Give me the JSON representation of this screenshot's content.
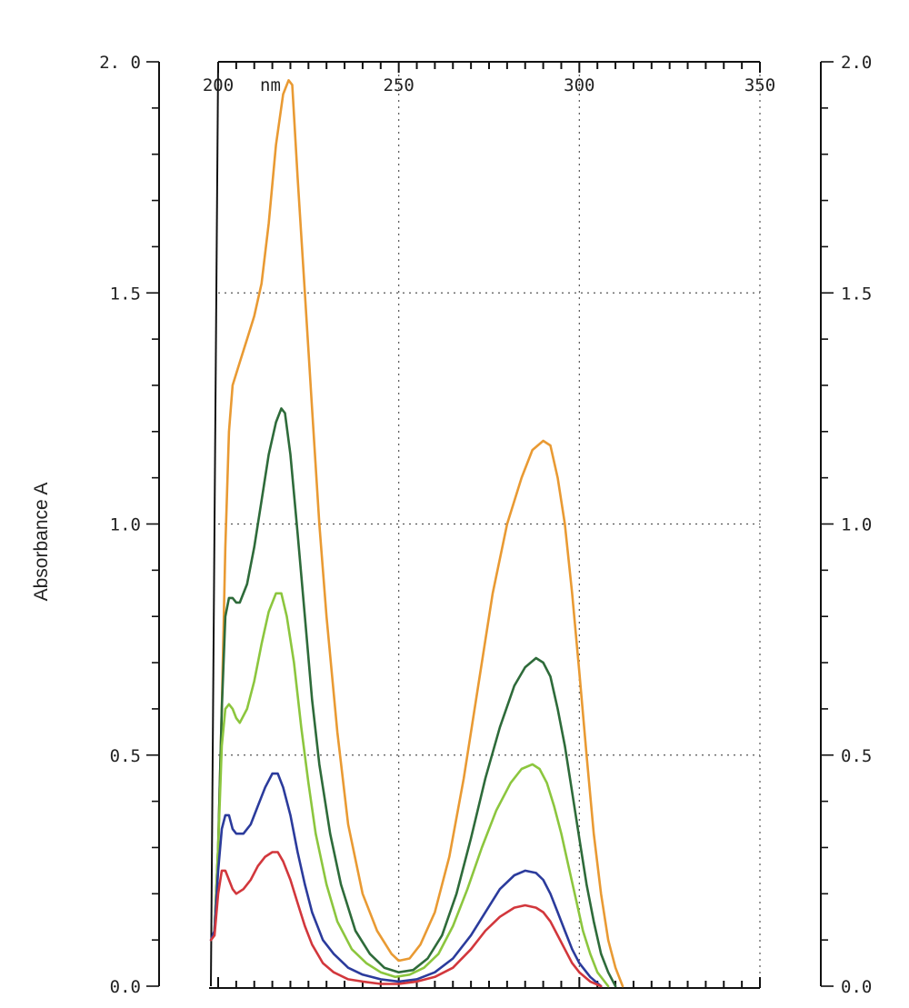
{
  "chart_data": {
    "type": "line",
    "xlabel": "nm",
    "ylabel": "Absorbance A",
    "xlim": [
      200,
      350
    ],
    "ylim": [
      0,
      2
    ],
    "grid": true,
    "x_tick_labels": [
      "200",
      "250",
      "300",
      "350"
    ],
    "x_ticks": [
      200,
      250,
      300,
      350
    ],
    "y_tick_labels_left": [
      "0.0",
      "0.5",
      "1.0",
      "1.5",
      "2. 0"
    ],
    "y_tick_labels_right": [
      "0.0",
      "0.5",
      "1.0",
      "1.5",
      "2.0"
    ],
    "y_ticks": [
      0,
      0.5,
      1.0,
      1.5,
      2.0
    ],
    "series": [
      {
        "color": "#e99a33",
        "points": [
          [
            199,
            0.12
          ],
          [
            200,
            0.3
          ],
          [
            201,
            0.6
          ],
          [
            202,
            0.95
          ],
          [
            203,
            1.2
          ],
          [
            204,
            1.3
          ],
          [
            206,
            1.35
          ],
          [
            208,
            1.4
          ],
          [
            210,
            1.45
          ],
          [
            212,
            1.52
          ],
          [
            214,
            1.65
          ],
          [
            216,
            1.82
          ],
          [
            218,
            1.93
          ],
          [
            219.5,
            1.96
          ],
          [
            220.5,
            1.95
          ],
          [
            222,
            1.75
          ],
          [
            224,
            1.5
          ],
          [
            226,
            1.25
          ],
          [
            228,
            1.0
          ],
          [
            230,
            0.8
          ],
          [
            233,
            0.55
          ],
          [
            236,
            0.35
          ],
          [
            240,
            0.2
          ],
          [
            244,
            0.12
          ],
          [
            248,
            0.07
          ],
          [
            250,
            0.055
          ],
          [
            253,
            0.06
          ],
          [
            256,
            0.09
          ],
          [
            260,
            0.16
          ],
          [
            264,
            0.28
          ],
          [
            268,
            0.45
          ],
          [
            272,
            0.65
          ],
          [
            276,
            0.85
          ],
          [
            280,
            1.0
          ],
          [
            284,
            1.1
          ],
          [
            287,
            1.16
          ],
          [
            290,
            1.18
          ],
          [
            292,
            1.17
          ],
          [
            294,
            1.1
          ],
          [
            296,
            1.0
          ],
          [
            298,
            0.85
          ],
          [
            300,
            0.68
          ],
          [
            302,
            0.5
          ],
          [
            304,
            0.33
          ],
          [
            306,
            0.2
          ],
          [
            308,
            0.1
          ],
          [
            310,
            0.04
          ],
          [
            312,
            0.0
          ]
        ]
      },
      {
        "color": "#2e6b3a",
        "points": [
          [
            199,
            0.12
          ],
          [
            200,
            0.3
          ],
          [
            201,
            0.6
          ],
          [
            202,
            0.8
          ],
          [
            203,
            0.84
          ],
          [
            204,
            0.84
          ],
          [
            205,
            0.83
          ],
          [
            206,
            0.83
          ],
          [
            208,
            0.87
          ],
          [
            210,
            0.95
          ],
          [
            212,
            1.05
          ],
          [
            214,
            1.15
          ],
          [
            216,
            1.22
          ],
          [
            217.5,
            1.25
          ],
          [
            218.5,
            1.24
          ],
          [
            220,
            1.15
          ],
          [
            222,
            0.98
          ],
          [
            224,
            0.8
          ],
          [
            226,
            0.62
          ],
          [
            228,
            0.48
          ],
          [
            231,
            0.33
          ],
          [
            234,
            0.22
          ],
          [
            238,
            0.12
          ],
          [
            242,
            0.07
          ],
          [
            246,
            0.04
          ],
          [
            250,
            0.03
          ],
          [
            254,
            0.035
          ],
          [
            258,
            0.06
          ],
          [
            262,
            0.11
          ],
          [
            266,
            0.2
          ],
          [
            270,
            0.32
          ],
          [
            274,
            0.45
          ],
          [
            278,
            0.56
          ],
          [
            282,
            0.65
          ],
          [
            285,
            0.69
          ],
          [
            288,
            0.71
          ],
          [
            290,
            0.7
          ],
          [
            292,
            0.67
          ],
          [
            294,
            0.6
          ],
          [
            296,
            0.52
          ],
          [
            298,
            0.42
          ],
          [
            300,
            0.32
          ],
          [
            302,
            0.22
          ],
          [
            304,
            0.14
          ],
          [
            306,
            0.07
          ],
          [
            308,
            0.03
          ],
          [
            310,
            0.0
          ]
        ]
      },
      {
        "color": "#8cc63e",
        "points": [
          [
            199,
            0.12
          ],
          [
            200,
            0.3
          ],
          [
            201,
            0.52
          ],
          [
            202,
            0.6
          ],
          [
            203,
            0.61
          ],
          [
            204,
            0.6
          ],
          [
            205,
            0.58
          ],
          [
            206,
            0.57
          ],
          [
            208,
            0.6
          ],
          [
            210,
            0.66
          ],
          [
            212,
            0.74
          ],
          [
            214,
            0.81
          ],
          [
            216,
            0.85
          ],
          [
            217.5,
            0.85
          ],
          [
            219,
            0.8
          ],
          [
            221,
            0.7
          ],
          [
            223,
            0.56
          ],
          [
            225,
            0.44
          ],
          [
            227,
            0.33
          ],
          [
            230,
            0.22
          ],
          [
            233,
            0.14
          ],
          [
            237,
            0.08
          ],
          [
            241,
            0.05
          ],
          [
            245,
            0.03
          ],
          [
            249,
            0.02
          ],
          [
            253,
            0.025
          ],
          [
            257,
            0.04
          ],
          [
            261,
            0.07
          ],
          [
            265,
            0.13
          ],
          [
            269,
            0.21
          ],
          [
            273,
            0.3
          ],
          [
            277,
            0.38
          ],
          [
            281,
            0.44
          ],
          [
            284,
            0.47
          ],
          [
            287,
            0.48
          ],
          [
            289,
            0.47
          ],
          [
            291,
            0.44
          ],
          [
            293,
            0.39
          ],
          [
            295,
            0.33
          ],
          [
            297,
            0.26
          ],
          [
            299,
            0.19
          ],
          [
            301,
            0.12
          ],
          [
            303,
            0.07
          ],
          [
            305,
            0.03
          ],
          [
            308,
            0.0
          ]
        ]
      },
      {
        "color": "#2b3b9c",
        "points": [
          [
            198,
            0.1
          ],
          [
            199,
            0.12
          ],
          [
            200,
            0.25
          ],
          [
            201,
            0.34
          ],
          [
            202,
            0.37
          ],
          [
            203,
            0.37
          ],
          [
            204,
            0.34
          ],
          [
            205,
            0.33
          ],
          [
            207,
            0.33
          ],
          [
            209,
            0.35
          ],
          [
            211,
            0.39
          ],
          [
            213,
            0.43
          ],
          [
            215,
            0.46
          ],
          [
            216.5,
            0.46
          ],
          [
            218,
            0.43
          ],
          [
            220,
            0.37
          ],
          [
            222,
            0.29
          ],
          [
            224,
            0.22
          ],
          [
            226,
            0.16
          ],
          [
            229,
            0.1
          ],
          [
            232,
            0.07
          ],
          [
            236,
            0.04
          ],
          [
            240,
            0.025
          ],
          [
            245,
            0.015
          ],
          [
            250,
            0.01
          ],
          [
            255,
            0.015
          ],
          [
            260,
            0.03
          ],
          [
            265,
            0.06
          ],
          [
            270,
            0.11
          ],
          [
            274,
            0.16
          ],
          [
            278,
            0.21
          ],
          [
            282,
            0.24
          ],
          [
            285,
            0.25
          ],
          [
            288,
            0.245
          ],
          [
            290,
            0.23
          ],
          [
            292,
            0.2
          ],
          [
            294,
            0.16
          ],
          [
            296,
            0.12
          ],
          [
            298,
            0.08
          ],
          [
            300,
            0.05
          ],
          [
            303,
            0.02
          ],
          [
            306,
            0.0
          ]
        ]
      },
      {
        "color": "#d2373c",
        "points": [
          [
            198,
            0.1
          ],
          [
            199,
            0.11
          ],
          [
            200,
            0.2
          ],
          [
            201,
            0.25
          ],
          [
            202,
            0.25
          ],
          [
            203,
            0.23
          ],
          [
            204,
            0.21
          ],
          [
            205,
            0.2
          ],
          [
            207,
            0.21
          ],
          [
            209,
            0.23
          ],
          [
            211,
            0.26
          ],
          [
            213,
            0.28
          ],
          [
            215,
            0.29
          ],
          [
            216.5,
            0.29
          ],
          [
            218,
            0.27
          ],
          [
            220,
            0.23
          ],
          [
            222,
            0.18
          ],
          [
            224,
            0.13
          ],
          [
            226,
            0.09
          ],
          [
            229,
            0.05
          ],
          [
            232,
            0.03
          ],
          [
            236,
            0.015
          ],
          [
            240,
            0.01
          ],
          [
            245,
            0.005
          ],
          [
            250,
            0.005
          ],
          [
            255,
            0.01
          ],
          [
            260,
            0.02
          ],
          [
            265,
            0.04
          ],
          [
            270,
            0.08
          ],
          [
            274,
            0.12
          ],
          [
            278,
            0.15
          ],
          [
            282,
            0.17
          ],
          [
            285,
            0.175
          ],
          [
            288,
            0.17
          ],
          [
            290,
            0.16
          ],
          [
            292,
            0.14
          ],
          [
            294,
            0.11
          ],
          [
            296,
            0.08
          ],
          [
            298,
            0.05
          ],
          [
            300,
            0.03
          ],
          [
            303,
            0.01
          ],
          [
            306,
            0.0
          ]
        ]
      }
    ]
  }
}
